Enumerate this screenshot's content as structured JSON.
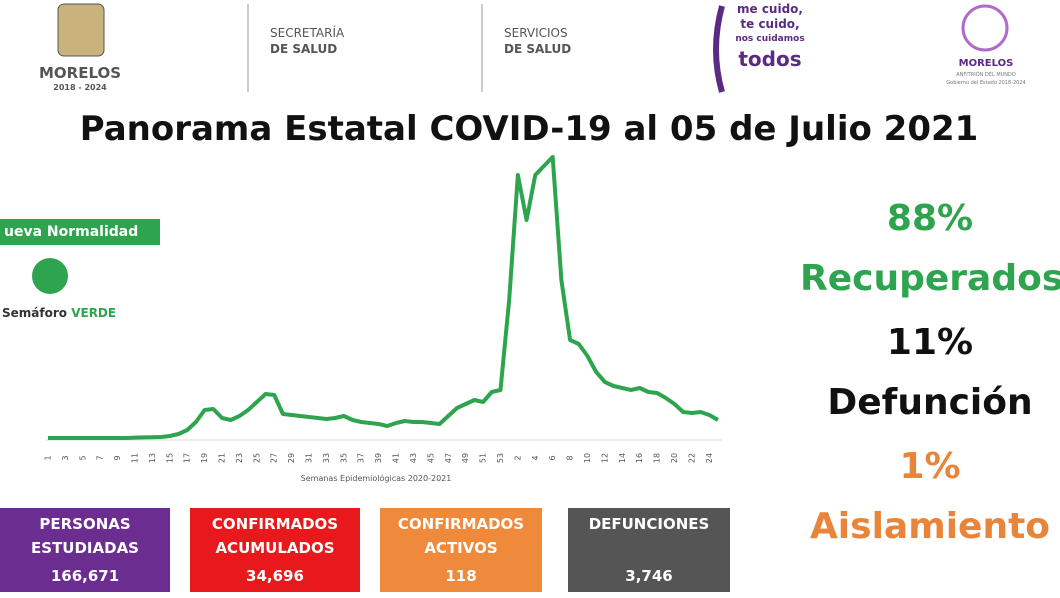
{
  "header": {
    "logo_morelos": {
      "name": "MORELOS",
      "years": "2018 - 2024"
    },
    "secretaria": [
      "SECRETARÍA",
      "DE SALUD"
    ],
    "servicios": [
      "SERVICIOS",
      "DE SALUD"
    ],
    "campaign": [
      "me cuido,",
      "te cuido,",
      "nos cuidamos",
      "todos"
    ],
    "logo_right": {
      "name": "MORELOS",
      "tagline": "ANFITRIÓN DEL MUNDO",
      "government": "Gobierno del Estado 2018-2024"
    }
  },
  "chart_data": {
    "type": "line",
    "title": "Panorama Estatal COVID-19 al 05 de Julio 2021",
    "x_label": "Semanas Epidemiológicas 2020-2021",
    "categories": [
      "1",
      null,
      "3",
      null,
      "5",
      null,
      "7",
      null,
      "9",
      null,
      "11",
      null,
      "13",
      null,
      "15",
      null,
      "17",
      null,
      "19",
      null,
      "21",
      null,
      "23",
      null,
      "25",
      null,
      "27",
      null,
      "29",
      null,
      "31",
      null,
      "33",
      null,
      "35",
      null,
      "37",
      null,
      "39",
      null,
      "41",
      null,
      "43",
      null,
      "45",
      null,
      "47",
      null,
      "49",
      null,
      "51",
      null,
      "53",
      null,
      "2",
      null,
      "4",
      null,
      "6",
      null,
      "8",
      null,
      "10",
      null,
      "12",
      null,
      "14",
      null,
      "16",
      null,
      "18",
      null,
      "20",
      null,
      "22",
      null,
      "24",
      null
    ],
    "values": [
      0,
      0,
      0,
      0,
      0,
      0,
      0,
      0,
      0,
      0,
      2,
      3,
      4,
      5,
      10,
      20,
      40,
      80,
      140,
      145,
      100,
      90,
      110,
      140,
      180,
      220,
      215,
      120,
      115,
      110,
      105,
      100,
      95,
      100,
      110,
      90,
      80,
      75,
      70,
      60,
      75,
      85,
      80,
      80,
      75,
      70,
      110,
      150,
      170,
      190,
      180,
      230,
      240,
      690,
      1315,
      1090,
      1315,
      1360,
      1405,
      790,
      490,
      470,
      410,
      330,
      280,
      260,
      250,
      240,
      250,
      230,
      225,
      200,
      170,
      130,
      125,
      130,
      115,
      90
    ],
    "color": "#2ea44f",
    "ylim": [
      0,
      1500
    ]
  },
  "status": {
    "badge": "ueva Normalidad",
    "semaforo": "Semáforo",
    "semaforo_color": "VERDE"
  },
  "stats": [
    {
      "value": "88%",
      "label": "Recuperados",
      "color": "#2ea44f"
    },
    {
      "value": "11%",
      "label": "Defunción",
      "color": "#111111"
    },
    {
      "value": "1%",
      "label": "Aislamiento",
      "color": "#e8853a"
    }
  ],
  "boxes": [
    {
      "label": "PERSONAS ESTUDIADAS",
      "value": "166,671",
      "color": "#6b2d8f"
    },
    {
      "label": "CONFIRMADOS ACUMULADOS",
      "value": "34,696",
      "color": "#e8191c"
    },
    {
      "label": "CONFIRMADOS ACTIVOS",
      "value": "118",
      "color": "#ef8a3c"
    },
    {
      "label": "DEFUNCIONES",
      "value": "3,746",
      "color": "#555555"
    }
  ]
}
